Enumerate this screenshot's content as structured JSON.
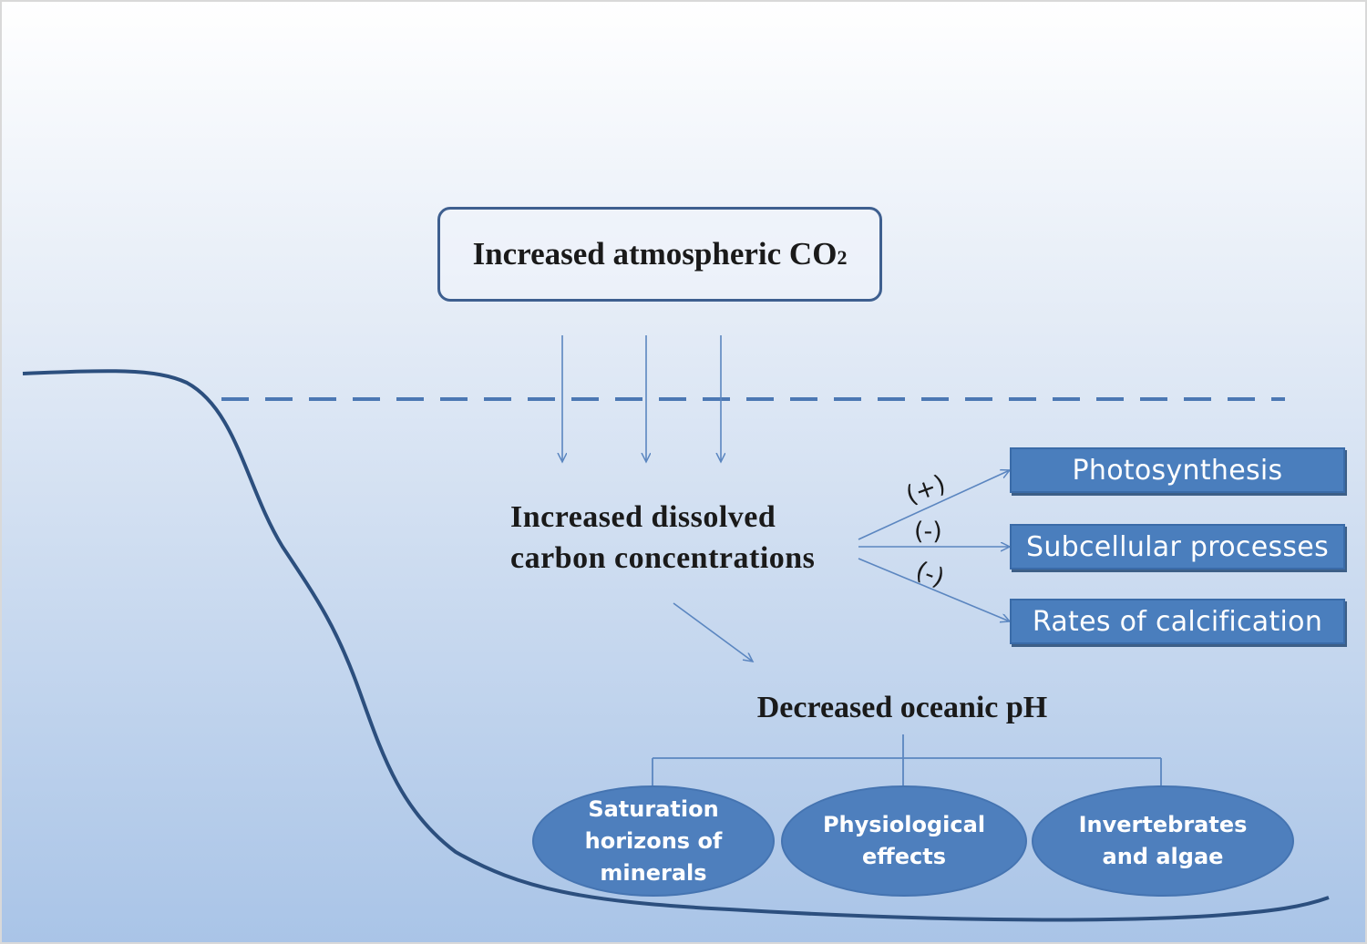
{
  "source_box": {
    "text": "Increased atmospheric CO",
    "subscript": "2"
  },
  "dissolved": {
    "line1": "Increased dissolved",
    "line2": "carbon concentrations"
  },
  "effects": [
    {
      "sign": "(+)",
      "label": "Photosynthesis"
    },
    {
      "sign": "(-)",
      "label": "Subcellular processes"
    },
    {
      "sign": "(-)",
      "label": "Rates of calcification"
    }
  ],
  "ph": {
    "text": "Decreased oceanic pH"
  },
  "consequences": [
    {
      "lines": [
        "Saturation",
        "horizons of",
        "minerals"
      ]
    },
    {
      "lines": [
        "Physiological",
        "effects"
      ]
    },
    {
      "lines": [
        "Invertebrates",
        "and algae"
      ]
    }
  ],
  "colors": {
    "sky_top": "#ffffff",
    "water": "#a9c4e7",
    "box_fill": "#4a7ebd",
    "ellipse_fill": "#4e7fbd",
    "line": "#3e5f8f",
    "arrow": "#5b86c0"
  }
}
